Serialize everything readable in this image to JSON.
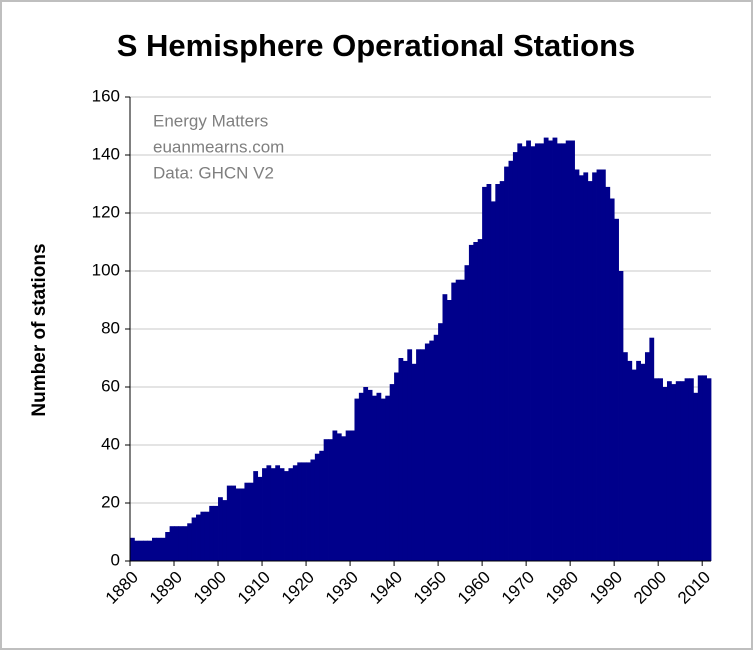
{
  "chart_data": {
    "type": "bar",
    "title": "S Hemisphere Operational Stations",
    "ylabel": "Number of stations",
    "annotations": [
      "Energy Matters",
      "euanmearns.com",
      "Data: GHCN V2"
    ],
    "color": "#00008b",
    "grid": true,
    "xlim": [
      1880,
      2012
    ],
    "ylim": [
      0,
      160
    ],
    "xticks": [
      1880,
      1890,
      1900,
      1910,
      1920,
      1930,
      1940,
      1950,
      1960,
      1970,
      1980,
      1990,
      2000,
      2010
    ],
    "yticks": [
      0,
      20,
      40,
      60,
      80,
      100,
      120,
      140,
      160
    ],
    "x": [
      1880,
      1881,
      1882,
      1883,
      1884,
      1885,
      1886,
      1887,
      1888,
      1889,
      1890,
      1891,
      1892,
      1893,
      1894,
      1895,
      1896,
      1897,
      1898,
      1899,
      1900,
      1901,
      1902,
      1903,
      1904,
      1905,
      1906,
      1907,
      1908,
      1909,
      1910,
      1911,
      1912,
      1913,
      1914,
      1915,
      1916,
      1917,
      1918,
      1919,
      1920,
      1921,
      1922,
      1923,
      1924,
      1925,
      1926,
      1927,
      1928,
      1929,
      1930,
      1931,
      1932,
      1933,
      1934,
      1935,
      1936,
      1937,
      1938,
      1939,
      1940,
      1941,
      1942,
      1943,
      1944,
      1945,
      1946,
      1947,
      1948,
      1949,
      1950,
      1951,
      1952,
      1953,
      1954,
      1955,
      1956,
      1957,
      1958,
      1959,
      1960,
      1961,
      1962,
      1963,
      1964,
      1965,
      1966,
      1967,
      1968,
      1969,
      1970,
      1971,
      1972,
      1973,
      1974,
      1975,
      1976,
      1977,
      1978,
      1979,
      1980,
      1981,
      1982,
      1983,
      1984,
      1985,
      1986,
      1987,
      1988,
      1989,
      1990,
      1991,
      1992,
      1993,
      1994,
      1995,
      1996,
      1997,
      1998,
      1999,
      2000,
      2001,
      2002,
      2003,
      2004,
      2005,
      2006,
      2007,
      2008,
      2009,
      2010,
      2011
    ],
    "values": [
      8,
      7,
      7,
      7,
      7,
      8,
      8,
      8,
      10,
      12,
      12,
      12,
      12,
      13,
      15,
      16,
      17,
      17,
      19,
      19,
      22,
      21,
      26,
      26,
      25,
      25,
      27,
      27,
      31,
      29,
      32,
      33,
      32,
      33,
      32,
      31,
      32,
      33,
      34,
      34,
      34,
      35,
      37,
      38,
      42,
      42,
      45,
      44,
      43,
      45,
      45,
      56,
      58,
      60,
      59,
      57,
      58,
      56,
      57,
      61,
      65,
      70,
      69,
      73,
      68,
      73,
      73,
      75,
      76,
      78,
      82,
      92,
      90,
      96,
      97,
      97,
      102,
      109,
      110,
      111,
      129,
      130,
      124,
      130,
      131,
      136,
      138,
      141,
      144,
      143,
      145,
      143,
      144,
      144,
      146,
      145,
      146,
      144,
      144,
      145,
      145,
      135,
      133,
      134,
      131,
      134,
      135,
      135,
      129,
      125,
      118,
      100,
      72,
      69,
      66,
      69,
      68,
      72,
      77,
      63,
      63,
      60,
      62,
      61,
      62,
      62,
      63,
      63,
      58,
      64,
      64,
      63
    ]
  }
}
